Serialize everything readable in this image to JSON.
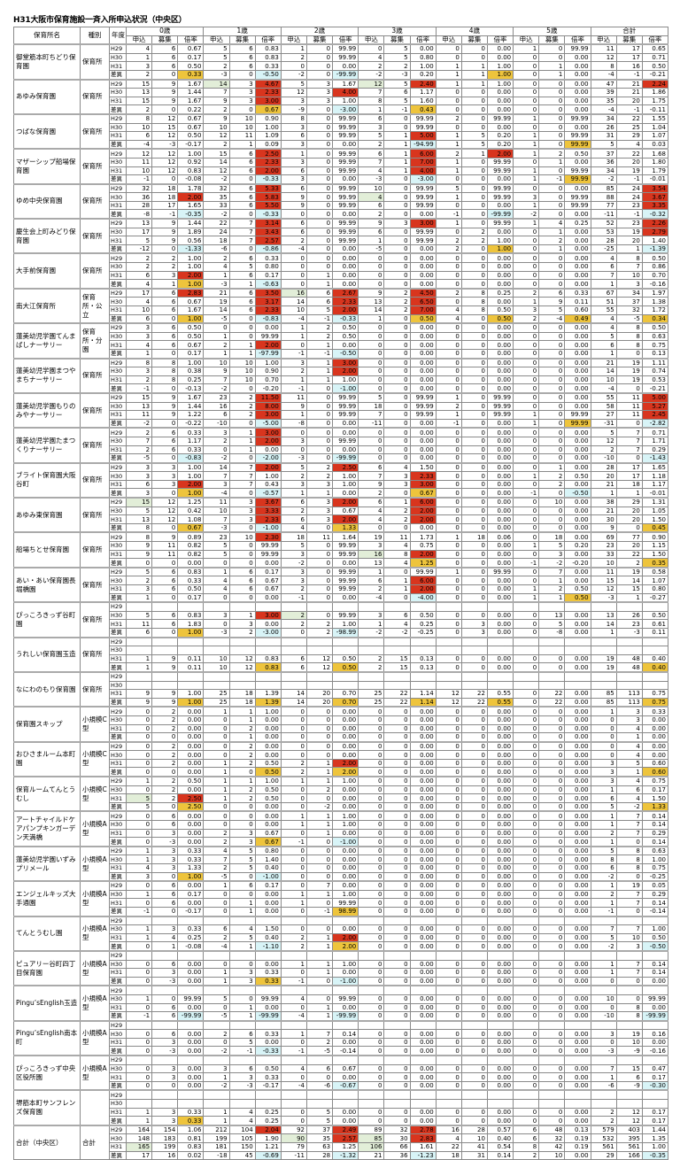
{
  "title": "H31大阪市保育施設一斉入所申込状況（中央区）",
  "headers": {
    "name": "保育所名",
    "type": "種別",
    "year": "年度",
    "groups": [
      "0歳",
      "1歳",
      "2歳",
      "3歳",
      "4歳",
      "5歳",
      "合計"
    ],
    "sub": [
      "申込",
      "募集",
      "倍率"
    ]
  },
  "colors": {
    "over_ratio": "#d8351e",
    "increase": "#eec43c",
    "decrease": "#d8f4f7",
    "note": "#e2eed8"
  },
  "facilities": [
    {
      "name": "御堂筋本町ちどり保育園",
      "type": "保育所",
      "rows": [
        {
          "y": "H29",
          "v": "4 6 0.67 5 6 0.83 1 0 99.99 0 5 0.00 0 0 0.00 1 0 99.99 11 17 0.65"
        },
        {
          "y": "H30",
          "v": "1 6 0.17 5 6 0.83 2 0 99.99 4 5 0.80 0 0 0.00 0 0 0.00 12 17 0.71"
        },
        {
          "y": "H31",
          "v": "3 6 0.50 2 6 0.33 0 0 0.00 2 2 1.00 1 1 1.00 0 1 0.00 8 16 0.50"
        },
        {
          "y": "差異",
          "v": "2 0 0.33y -3 0 -0.50b -2 0 -99.99b -2 -3 0.20 1 1 1.00y 0 1 0.00 -4 -1 -0.21"
        }
      ]
    },
    {
      "name": "あゆみ保育園",
      "type": "保育所",
      "rows": [
        {
          "y": "H29",
          "v": "15 9 1.67 14g 3 4.67r 5 3 1.67 12g 5 2.40r 1 1 1.00 0 0 0.00 47 21 2.24r"
        },
        {
          "y": "H30",
          "v": "13 9 1.44 7 3 2.33r 12 3 4.00r 7 6 1.17 0 0 0.00 0 0 0.00 39 21 1.86"
        },
        {
          "y": "H31",
          "v": "15 9 1.67 9 3 3.00r 3 3 1.00 8 5 1.60 0 0 0.00 0 0 0.00 35 20 1.75"
        },
        {
          "y": "差異",
          "v": "2 0 0.22 2 0 0.67y -9 0 -3.00b 1 -1 0.43y 0 0 0.00 0 0 0.00 -4 -1 -0.11"
        }
      ]
    },
    {
      "name": "つばな保育園",
      "type": "保育所",
      "rows": [
        {
          "y": "H29",
          "v": "8 12 0.67 9 10 0.90 8 0 99.99 6 0 99.99 2 0 99.99 1 0 99.99 34 22 1.55"
        },
        {
          "y": "H30",
          "v": "10 15 0.67 10 10 1.00 3 0 99.99 3 0 99.99 0 0 0.00 0 0 0.00 26 25 1.04"
        },
        {
          "y": "H31",
          "v": "6 12 0.50 12 11 1.09 6 0 99.99 5 1 5.00r 1 5 0.20 1 0 99.99 31 29 1.07"
        },
        {
          "y": "差異",
          "v": "-4 -3 -0.17 2 1 0.09 3 0 0.00 2 1 -94.99b 1 5 0.20 1 0 99.99y 5 4 0.03"
        }
      ]
    },
    {
      "name": "マザーシップ船場保育園",
      "type": "保育所",
      "rows": [
        {
          "y": "H29",
          "v": "12 12 1.00 15 6 2.50r 1 0 99.99 6 1 6.00r 2 1 2.00r 1 2 0.50 37 22 1.68"
        },
        {
          "y": "H30",
          "v": "11 12 0.92 14 6 2.33r 3 0 99.99 7 1 7.00r 1 0 99.99 0 1 0.00 36 20 1.80"
        },
        {
          "y": "H31",
          "v": "10 12 0.83 12 6 2.00r 6 0 99.99 4 1 4.00r 1 0 99.99 1 0 99.99 34 19 1.79"
        },
        {
          "y": "差異",
          "v": "-1 0 -0.08 -2 0 -0.33b 3 0 0.00 -3 0 -3.00b 0 0 0.00 1 -1 99.99y -2 -1 -0.01"
        }
      ]
    },
    {
      "name": "ゆめ中央保育園",
      "type": "保育所",
      "rows": [
        {
          "y": "H29",
          "v": "32 18 1.78 32 6 5.33r 6 0 99.99 10 0 99.99 5 0 99.99 0 0 0.00 85 24 3.54r"
        },
        {
          "y": "H30",
          "v": "36 18 2.00r 35 6 5.83r 9 0 99.99 4g 0 99.99 1 0 99.99 3 0 99.99 88 24 3.67r"
        },
        {
          "y": "H31",
          "v": "28 17 1.65 33 6 5.50r 9 0 99.99 6 0 99.99 0 0 0.00 1 0 99.99 77 23 3.35r"
        },
        {
          "y": "差異",
          "v": "-8 -1 -0.35b -2 0 -0.33b 0 0 0.00 2 0 0.00 -1 0 -99.99b -2 0 0.00 -11 -1 -0.32b"
        }
      ]
    },
    {
      "name": "慶生会上町みどり保育園",
      "type": "保育所",
      "rows": [
        {
          "y": "H29",
          "v": "13 9 1.44 22 7 3.14r 6 0 99.99 9 3 3.00r 1 0 99.99 1 4 0.25 52 23 2.26r"
        },
        {
          "y": "H30",
          "v": "17 9 1.89 24 7 3.43r 6 0 99.99 6 0 99.99 0 2 0.00 0 1 0.00 53 19 2.79r"
        },
        {
          "y": "H31",
          "v": "5 9 0.56 18 7 2.57r 2 0 99.99 1 0 99.99 2 2 1.00 0 2 0.00 28 20 1.40"
        },
        {
          "y": "差異",
          "v": "-12 0 -1.33b -6 0 -0.86b -4 0 0.00 -5 0 0.00 2 0 1.00y 0 1 0.00 -25 1 -1.39b"
        }
      ]
    },
    {
      "name": "大手前保育園",
      "type": "保育所",
      "rows": [
        {
          "y": "H29",
          "v": "2 2 1.00 2 6 0.33 0 0 0.00 0 0 0.00 0 0 0.00 0 0 0.00 4 8 0.50"
        },
        {
          "y": "H30",
          "v": "2 2 1.00 4 5 0.80 0 0 0.00 0 0 0.00 0 0 0.00 0 0 0.00 6 7 0.86"
        },
        {
          "y": "H31",
          "v": "6 3 2.00r 1 6 0.17 0 1 0.00 0 0 0.00 0 0 0.00 0 0 0.00 7 10 0.70"
        },
        {
          "y": "差異",
          "v": "4 1 1.00y -3 1 -0.63b 0 1 0.00 0 0 0.00 0 0 0.00 0 0 0.00 1 3 -0.16"
        }
      ]
    },
    {
      "name": "南大江保育所",
      "type": "保育所・公立",
      "rows": [
        {
          "y": "H29",
          "v": "17 6 2.83r 21 6 3.50r 16g 6 2.67r 9 2 4.50r 2 8 0.25 2 6 0.33 67 34 1.97"
        },
        {
          "y": "H30",
          "v": "4 6 0.67 19 6 3.17r 14 6 2.33r 13 2 6.50r 0 8 0.00 1 9 0.11 51 37 1.38"
        },
        {
          "y": "H31",
          "v": "10 6 1.67 14 6 2.33r 10 5 2.00r 14 2 7.00r 4 8 0.50 3 5 0.60 55 32 1.72"
        },
        {
          "y": "差異",
          "v": "6 0 1.00y -5 0 -0.83b -4 -1 -0.33b 1 0 0.50y 4 0 0.50y 2 -4 0.49y 4 -5 0.34y"
        }
      ]
    },
    {
      "name": "蓮美幼児学園てんまばしナーサリー",
      "type": "保育所・分園",
      "rows": [
        {
          "y": "H29",
          "v": "3 6 0.50 0 0 0.00 1 2 0.50 0 0 0.00 0 0 0.00 0 0 0.00 4 8 0.50"
        },
        {
          "y": "H30",
          "v": "3 6 0.50 1 0 99.99 1 2 0.50 0 0 0.00 0 0 0.00 0 0 0.00 5 8 0.63"
        },
        {
          "y": "H31",
          "v": "4 6 0.67 2 1 2.00r 0 1 0.00 0 0 0.00 0 0 0.00 0 0 0.00 6 8 0.75"
        },
        {
          "y": "差異",
          "v": "1 0 0.17 1 1 -97.99b -1 -1 -0.50b 0 0 0.00 0 0 0.00 0 0 0.00 1 0 0.13"
        }
      ]
    },
    {
      "name": "蓮美幼児学園まつやまちナーサリー",
      "type": "保育所",
      "rows": [
        {
          "y": "H29",
          "v": "8 8 1.00 10 10 1.00 3 1 3.00r 0 0 0.00 0 0 0.00 0 0 0.00 21 19 1.11"
        },
        {
          "y": "H30",
          "v": "3 8 0.38 9 10 0.90 2 1 2.00r 0 0 0.00 0 0 0.00 0 0 0.00 14 19 0.74"
        },
        {
          "y": "H31",
          "v": "2 8 0.25 7 10 0.70 1 1 1.00 0 0 0.00 0 0 0.00 0 0 0.00 10 19 0.53"
        },
        {
          "y": "差異",
          "v": "-1 0 -0.13 -2 0 -0.20 -1 0 -1.00b 0 0 0.00 0 0 0.00 0 0 0.00 -4 0 -0.21"
        }
      ]
    },
    {
      "name": "蓮美幼児学園もりのみやナーサリー",
      "type": "保育所",
      "rows": [
        {
          "y": "H29",
          "v": "15 9 1.67 23 2 11.50r 11 0 99.99 5 0 99.99 1 0 99.99 0 0 0.00 55 11 5.00r"
        },
        {
          "y": "H30",
          "v": "13 9 1.44 16 2 8.00r 9 0 99.99 18 0 99.99 2 0 99.99 0 0 0.00 58 11 5.27r"
        },
        {
          "y": "H31",
          "v": "11 9 1.22 6 2 3.00r 1 0 99.99 7 0 99.99 1 0 99.99 1 0 99.99 27 11 2.45r"
        },
        {
          "y": "差異",
          "v": "-2 0 -0.22 -10 0 -5.00b -8 0 0.00 -11 0 0.00 -1 0 0.00 1 0 99.99y -31 0 -2.82b"
        }
      ]
    },
    {
      "name": "蓮美幼児学園たまつくりナーサリー",
      "type": "保育所",
      "rows": [
        {
          "y": "H29",
          "v": "2 6 0.33 3 1 3.00r 0 0 0.00 0 0 0.00 0 0 0.00 0 0 0.00 5 7 0.71"
        },
        {
          "y": "H30",
          "v": "7 6 1.17 2 1 2.00r 3 0 99.99 0 0 0.00 0 0 0.00 0 0 0.00 12 7 1.71"
        },
        {
          "y": "H31",
          "v": "2 6 0.33 0 1 0.00 0 0 0.00 0 0 0.00 0 0 0.00 0 0 0.00 2 7 0.29"
        },
        {
          "y": "差異",
          "v": "-5 0 -0.83b -2 0 -2.00b -3 0 -99.99b 0 0 0.00 0 0 0.00 0 0 0.00 -10 0 -1.43b"
        }
      ]
    },
    {
      "name": "ブライト保育園大阪谷町",
      "type": "保育所",
      "rows": [
        {
          "y": "H29",
          "v": "3 3 1.00 14 7 2.00r 5 2 2.50r 6 4 1.50 0 0 0.00 0 1 0.00 28 17 1.65"
        },
        {
          "y": "H30",
          "v": "3 3 1.00 7 7 1.00 2 2 1.00 7 3 2.33r 0 0 0.00 1 2 0.50 20 17 1.18"
        },
        {
          "y": "H31",
          "v": "6 3 2.00r 3 7 0.43 3 3 1.00 9 3 3.00r 0 0 0.00 0 2 0.00 21 18 1.17"
        },
        {
          "y": "差異",
          "v": "3 0 1.00y -4 0 -0.57b 1 1 0.00 2 0 0.67y 0 0 0.00 -1 0 -0.50b 1 1 -0.01"
        }
      ]
    },
    {
      "name": "あゆみ東保育園",
      "type": "保育所",
      "rows": [
        {
          "y": "H29",
          "v": "15g 12 1.25 11 3 3.67r 6 3 2.00r 6 1 6.00r 0 0 0.00 0 10 0.00 38 29 1.31"
        },
        {
          "y": "H30",
          "v": "5 12 0.42 10 3 3.33r 2 3 0.67 4 2 2.00r 0 0 0.00 0 0 0.00 21 20 1.05"
        },
        {
          "y": "H31",
          "v": "13 12 1.08 7 3 2.33r 6 3 2.00r 4 2 2.00r 0 0 0.00 0 0 0.00 30 20 1.50"
        },
        {
          "y": "差異",
          "v": "8 0 0.67y -3 0 -1.00b 4 0 1.33y 0 0 0.00 0 0 0.00 0 0 0.00 9 0 0.45y"
        }
      ]
    },
    {
      "name": "船場ちとせ保育園",
      "type": "保育所",
      "rows": [
        {
          "y": "H29",
          "v": "8 9 0.89 23 10 2.30r 18 11 1.64 19 11 1.73 1 18 0.06 0 18 0.00 69 77 0.90"
        },
        {
          "y": "H30",
          "v": "9 11 0.82 5 0 99.99 5 0 99.99 3 4 0.75 0 0 0.00 1 5 0.20 23 20 1.15"
        },
        {
          "y": "H31",
          "v": "9 11 0.82 5 0 99.99 3 0 99.99 16g 8 2.00r 0 0 0.00 0 3 0.00 33 22 1.50"
        },
        {
          "y": "差異",
          "v": "0 0 0.00 0 0 0.00 -2 0 0.00 13 4 1.25y 0 0 0.00 -1 -2 -0.20 10 2 0.35y"
        }
      ]
    },
    {
      "name": "あい・あい保育園長堀橋園",
      "type": "保育所",
      "rows": [
        {
          "y": "H29",
          "v": "5 6 0.83 1 6 0.17 3 0 99.99 1 0 99.99 1 0 99.99 0 7 0.00 11 19 0.58"
        },
        {
          "y": "H30",
          "v": "2 6 0.33 4 6 0.67 3 0 99.99 6 1 6.00r 0 0 0.00 0 1 0.00 15 14 1.07"
        },
        {
          "y": "H31",
          "v": "3 6 0.50 4 6 0.67 2 0 99.99 2 1 2.00r 0 0 0.00 1 2 0.50 12 15 0.80"
        },
        {
          "y": "差異",
          "v": "1 0 0.17 0 0 0.00 -1 0 0.00 -4 0 -4.00b 0 0 0.00 1 1 0.50y -3 1 -0.27"
        }
      ]
    },
    {
      "name": "ぴっころきっず谷町園",
      "type": "保育所",
      "rows": [
        {
          "y": "H29",
          "v": ""
        },
        {
          "y": "H30",
          "v": "5 6 0.83 3 1 3.00r 2g 0 99.99 3 6 0.50 0 0 0.00 0 13 0.00 13 26 0.50"
        },
        {
          "y": "H31",
          "v": "11 6 1.83 0 3 0.00 2 2 1.00 1 4 0.25 0 3 0.00 0 5 0.00 14 23 0.61"
        },
        {
          "y": "差異",
          "v": "6 0 1.00y -3 2 -3.00b 0 2 -98.99b -2 -2 -0.25 0 3 0.00 0 -8 0.00 1 -3 0.11"
        }
      ]
    },
    {
      "name": "うれしい保育園玉造",
      "type": "保育所",
      "rows": [
        {
          "y": "H29",
          "v": ""
        },
        {
          "y": "H30",
          "v": ""
        },
        {
          "y": "H31",
          "v": "1 9 0.11 10 12 0.83 6 12 0.50 2 15 0.13 0 0 0.00 0 0 0.00 19 48 0.40"
        },
        {
          "y": "差異",
          "v": "1 9 0.11 10 12 0.83y 6 12 0.50y 2 15 0.13 0 0 0.00 0 0 0.00 19 48 0.40y"
        }
      ]
    },
    {
      "name": "なにわのもり保育園",
      "type": "保育所",
      "rows": [
        {
          "y": "H29",
          "v": ""
        },
        {
          "y": "H30",
          "v": ""
        },
        {
          "y": "H31",
          "v": "9 9 1.00 25 18 1.39 14 20 0.70 25 22 1.14 12 22 0.55 0 22 0.00 85 113 0.75"
        },
        {
          "y": "差異",
          "v": "9 9 1.00y 25 18 1.39y 14 20 0.70y 25 22 1.14y 12 22 0.55y 0 22 0.00 85 113 0.75y"
        }
      ]
    },
    {
      "name": "保育園スキップ",
      "type": "小規模C型",
      "rows": [
        {
          "y": "H29",
          "v": "0 2 0.00 1 1 1.00 0 0 0.00 0 0 0.00 0 0 0.00 0 0 0.00 1 3 0.33"
        },
        {
          "y": "H30",
          "v": "0 2 0.00 0 1 0.00 0 0 0.00 0 0 0.00 0 0 0.00 0 0 0.00 0 3 0.00"
        },
        {
          "y": "H31",
          "v": "0 2 0.00 0 2 0.00 0 0 0.00 0 0 0.00 0 0 0.00 0 0 0.00 0 4 0.00"
        },
        {
          "y": "差異",
          "v": "0 0 0.00 0 1 0.00 0 0 0.00 0 0 0.00 0 0 0.00 0 0 0.00 0 1 0.00"
        }
      ]
    },
    {
      "name": "おひさまルーム本町園",
      "type": "小規模C型",
      "rows": [
        {
          "y": "H29",
          "v": "0 2 0.00 0 2 0.00 0 0 0.00 0 0 0.00 0 0 0.00 0 0 0.00 0 4 0.00"
        },
        {
          "y": "H30",
          "v": "0 2 0.00 0 2 0.00 0 0 0.00 0 0 0.00 0 0 0.00 0 0 0.00 0 4 0.00"
        },
        {
          "y": "H31",
          "v": "0 2 0.00 1 2 0.50 2 1 2.00r 0 0 0.00 0 0 0.00 0 0 0.00 3 5 0.60"
        },
        {
          "y": "差異",
          "v": "0 0 0.00 1 0 0.50y 2 1 2.00y 0 0 0.00 0 0 0.00 0 0 0.00 3 1 0.60y"
        }
      ]
    },
    {
      "name": "保育ルームてんとうむし",
      "type": "小規模C型",
      "rows": [
        {
          "y": "H29",
          "v": "1 2 0.50 1 1 1.00 1 1 1.00 0 0 0.00 0 0 0.00 0 0 0.00 3 4 0.75"
        },
        {
          "y": "H30",
          "v": "0 2 0.00 1 2 0.50 0 2 0.00 0 0 0.00 0 0 0.00 0 0 0.00 1 6 0.17"
        },
        {
          "y": "H31",
          "v": "5g 2 2.50r 1 2 0.50 0 0 0.00 0 0 0.00 0 0 0.00 0 0 0.00 6 4 1.50"
        },
        {
          "y": "差異",
          "v": "5 0 2.50y 0 0 0.00 0 -2 0.00 0 0 0.00 0 0 0.00 0 0 0.00 5 -2 1.33y"
        }
      ]
    },
    {
      "name": "アートチャイルドケアパンプキンガーデン天満橋",
      "type": "小規模A型",
      "rows": [
        {
          "y": "H29",
          "v": "0 6 0.00 0 0 0.00 1 1 1.00 0 0 0.00 0 0 0.00 0 0 0.00 1 7 0.14"
        },
        {
          "y": "H30",
          "v": "0 6 0.00 0 0 0.00 1 1 1.00 0 0 0.00 0 0 0.00 0 0 0.00 1 7 0.14"
        },
        {
          "y": "H31",
          "v": "0 3 0.00 2 3 0.67 0 1 0.00 0 0 0.00 0 0 0.00 0 0 0.00 2 7 0.29"
        },
        {
          "y": "差異",
          "v": "0 -3 0.00 2 3 0.67y -1 0 -1.00b 0 0 0.00 0 0 0.00 0 0 0.00 1 0 0.14"
        }
      ]
    },
    {
      "name": "蓮美幼児学園いずみプリメール",
      "type": "小規模A型",
      "rows": [
        {
          "y": "H29",
          "v": "1 3 0.33 4 5 0.80 0 0 0.00 0 0 0.00 0 0 0.00 0 0 0.00 5 8 0.63"
        },
        {
          "y": "H30",
          "v": "1 3 0.33 7 5 1.40 0 0 0.00 0 0 0.00 0 0 0.00 0 0 0.00 8 8 1.00"
        },
        {
          "y": "H31",
          "v": "4 3 1.33 2 5 0.40 0 0 0.00 0 0 0.00 0 0 0.00 0 0 0.00 6 8 0.75"
        },
        {
          "y": "差異",
          "v": "3 0 1.00y -5 0 -1.00b 0 0 0.00 0 0 0.00 0 0 0.00 0 0 0.00 -2 0 -0.25"
        }
      ]
    },
    {
      "name": "エンジェルキッズ大手通園",
      "type": "小規模A型",
      "rows": [
        {
          "y": "H29",
          "v": "0 6 0.00 1 6 0.17 0 7 0.00 0 0 0.00 0 0 0.00 0 0 0.00 1 19 0.05"
        },
        {
          "y": "H30",
          "v": "1 6 0.17 0 0 0.00 1 1 1.00 0 0 0.00 0 0 0.00 0 0 0.00 2 7 0.29"
        },
        {
          "y": "H31",
          "v": "0 6 0.00 0 1 0.00 1 0 99.99 0 0 0.00 0 0 0.00 0 0 0.00 1 7 0.14"
        },
        {
          "y": "差異",
          "v": "-1 0 -0.17 0 1 0.00 0 -1 98.99y 0 0 0.00 0 0 0.00 0 0 0.00 -1 0 -0.14"
        }
      ]
    },
    {
      "name": "てんとうむし園",
      "type": "小規模A型",
      "rows": [
        {
          "y": "H29",
          "v": ""
        },
        {
          "y": "H30",
          "v": "1 3 0.33 6 4 1.50 0 0 0.00 0 0 0.00 0 0 0.00 0 0 0.00 7 7 1.00"
        },
        {
          "y": "H31",
          "v": "1 4 0.25 2 5 0.40 2 1 2.00r 0 0 0.00 0 0 0.00 0 0 0.00 5 10 0.50"
        },
        {
          "y": "差異",
          "v": "0 1 -0.08 -4 1 -1.10b 2 1 2.00y 0 0 0.00 0 0 0.00 0 0 0.00 -2 3 -0.50b"
        }
      ]
    },
    {
      "name": "ピュアリー谷町四丁目保育園",
      "type": "小規模A型",
      "rows": [
        {
          "y": "H29",
          "v": ""
        },
        {
          "y": "H30",
          "v": "0 6 0.00 0 0 0.00 1 1 1.00 0 0 0.00 0 0 0.00 0 0 0.00 1 7 0.14"
        },
        {
          "y": "H31",
          "v": "0 3 0.00 1 3 0.33 0 1 0.00 0 0 0.00 0 0 0.00 0 0 0.00 1 7 0.14"
        },
        {
          "y": "差異",
          "v": "0 -3 0.00 1 3 0.33y -1 0 -1.00b 0 0 0.00 0 0 0.00 0 0 0.00 0 0 0.00"
        }
      ]
    },
    {
      "name": "Pingu’sEnglish玉造",
      "type": "小規模A型",
      "rows": [
        {
          "y": "H29",
          "v": ""
        },
        {
          "y": "H30",
          "v": "1 0 99.99 5 0 99.99 4 0 99.99 0 0 0.00 0 0 0.00 0 0 0.00 10 0 99.99"
        },
        {
          "y": "H31",
          "v": "0 6 0.00 0 1 0.00 0 1 0.00 0 0 0.00 0 0 0.00 0 0 0.00 0 8 0.00"
        },
        {
          "y": "差異",
          "v": "-1 6 -99.99b -5 1 -99.99b -4 1 -99.99b 0 0 0.00 0 0 0.00 0 0 0.00 -10 8 -99.99b"
        }
      ]
    },
    {
      "name": "Pingu’sEnglish南本町",
      "type": "小規模A型",
      "rows": [
        {
          "y": "H29",
          "v": ""
        },
        {
          "y": "H30",
          "v": "0 6 0.00 2 6 0.33 1 7 0.14 0 0 0.00 0 0 0.00 0 0 0.00 3 19 0.16"
        },
        {
          "y": "H31",
          "v": "0 3 0.00 0 5 0.00 0 2 0.00 0 0 0.00 0 0 0.00 0 0 0.00 0 10 0.00"
        },
        {
          "y": "差異",
          "v": "0 -3 0.00 -2 -1 -0.33b -1 -5 -0.14 0 0 0.00 0 0 0.00 0 0 0.00 -3 -9 -0.16"
        }
      ]
    },
    {
      "name": "ぴっころきっず中央区役所園",
      "type": "小規模A型",
      "rows": [
        {
          "y": "H29",
          "v": ""
        },
        {
          "y": "H30",
          "v": "0 3 0.00 3 6 0.50 4 6 0.67 0 0 0.00 0 0 0.00 0 0 0.00 7 15 0.47"
        },
        {
          "y": "H31",
          "v": "0 3 0.00 1 3 0.33 0 0 0.00 0 0 0.00 0 0 0.00 0 0 0.00 1 6 0.17"
        },
        {
          "y": "差異",
          "v": "0 0 0.00 -2 -3 -0.17 -4 -6 -0.67b 0 0 0.00 0 0 0.00 0 0 0.00 -6 -9 -0.30b"
        }
      ]
    },
    {
      "name": "堺筋本町サンフレンズ保育園",
      "type": "",
      "rows": [
        {
          "y": "H29",
          "v": ""
        },
        {
          "y": "H30",
          "v": ""
        },
        {
          "y": "H31",
          "v": "1 3 0.33 1 4 0.25 0 5 0.00 0 0 0.00 0 0 0.00 0 0 0.00 2 12 0.17"
        },
        {
          "y": "差異",
          "v": "1 3 0.33y 1 4 0.25 0 5 0.00 0 0 0.00 0 0 0.00 0 0 0.00 2 12 0.17"
        }
      ]
    },
    {
      "name": "合計（中央区）",
      "type": "合計",
      "rows": [
        {
          "y": "H29",
          "v": "164 154 1.06 212 104 2.04r 92 37 2.49r 89 32 2.78r 16 28 0.57 6 48 0.13 579 403 1.44"
        },
        {
          "y": "H30",
          "v": "148 183 0.81 199 105 1.90 90g 35 2.57r 85g 30 2.83r 4 10 0.40 6 32 0.19 532 395 1.35"
        },
        {
          "y": "H31",
          "v": "165g 199 0.83 181 150 1.21 79 63 1.25 106g 66 1.61 22 41 0.54 8 42 0.19 561 561 1.00"
        },
        {
          "y": "差異",
          "v": "17 16 0.02 -18 45 -0.69b -11 28 -1.32b 21 36 -1.23b 18 31 0.14 2 10 0.00 29 166 -0.35b"
        }
      ]
    }
  ]
}
